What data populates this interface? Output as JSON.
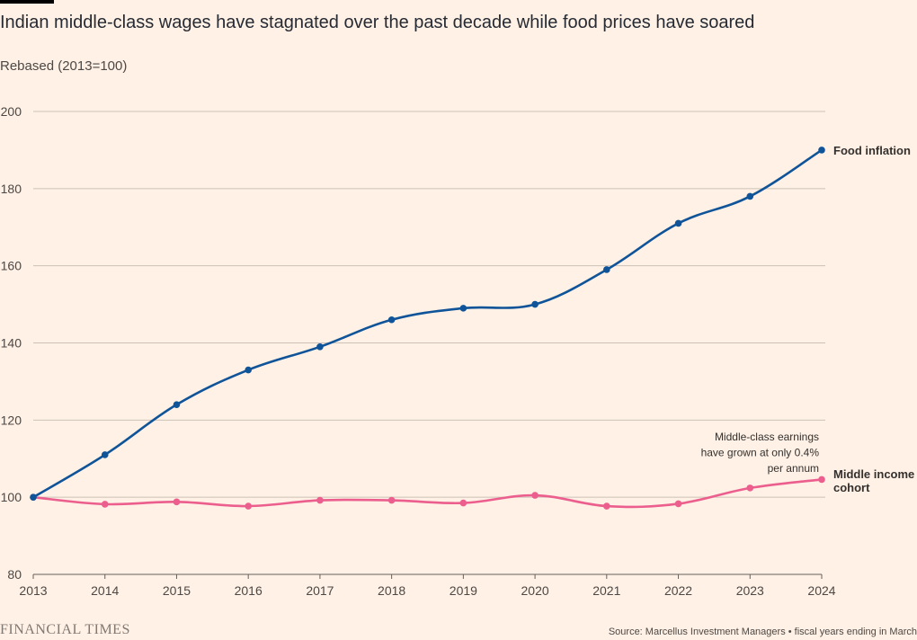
{
  "header": {
    "title": "Indian middle-class wages have stagnated over the past decade while food prices have soared",
    "subtitle": "Rebased (2013=100)"
  },
  "footer": {
    "logo": "FINANCIAL TIMES",
    "source": "Source: Marcellus Investment Managers • fiscal years ending in March"
  },
  "chart_data": {
    "type": "line",
    "title": "Indian middle-class wages have stagnated over the past decade while food prices have soared",
    "subtitle": "Rebased (2013=100)",
    "x": [
      2013,
      2014,
      2015,
      2016,
      2017,
      2018,
      2019,
      2020,
      2021,
      2022,
      2023,
      2024
    ],
    "y_ticks": [
      80,
      100,
      120,
      140,
      160,
      180,
      200
    ],
    "ylim": [
      80,
      200
    ],
    "grid": true,
    "series": [
      {
        "name": "Food inflation",
        "color": "#0f5499",
        "values": [
          100,
          111,
          124,
          133,
          139,
          146,
          149,
          150,
          159,
          171,
          178,
          190
        ]
      },
      {
        "name": "Middle income cohort",
        "color": "#eb5e8d",
        "values": [
          100,
          98.2,
          98.8,
          97.7,
          99.2,
          99.2,
          98.5,
          100.5,
          97.7,
          98.3,
          102.4,
          104.6
        ]
      }
    ],
    "annotation": [
      "Middle-class earnings",
      "have grown at only 0.4%",
      "per annum"
    ]
  }
}
